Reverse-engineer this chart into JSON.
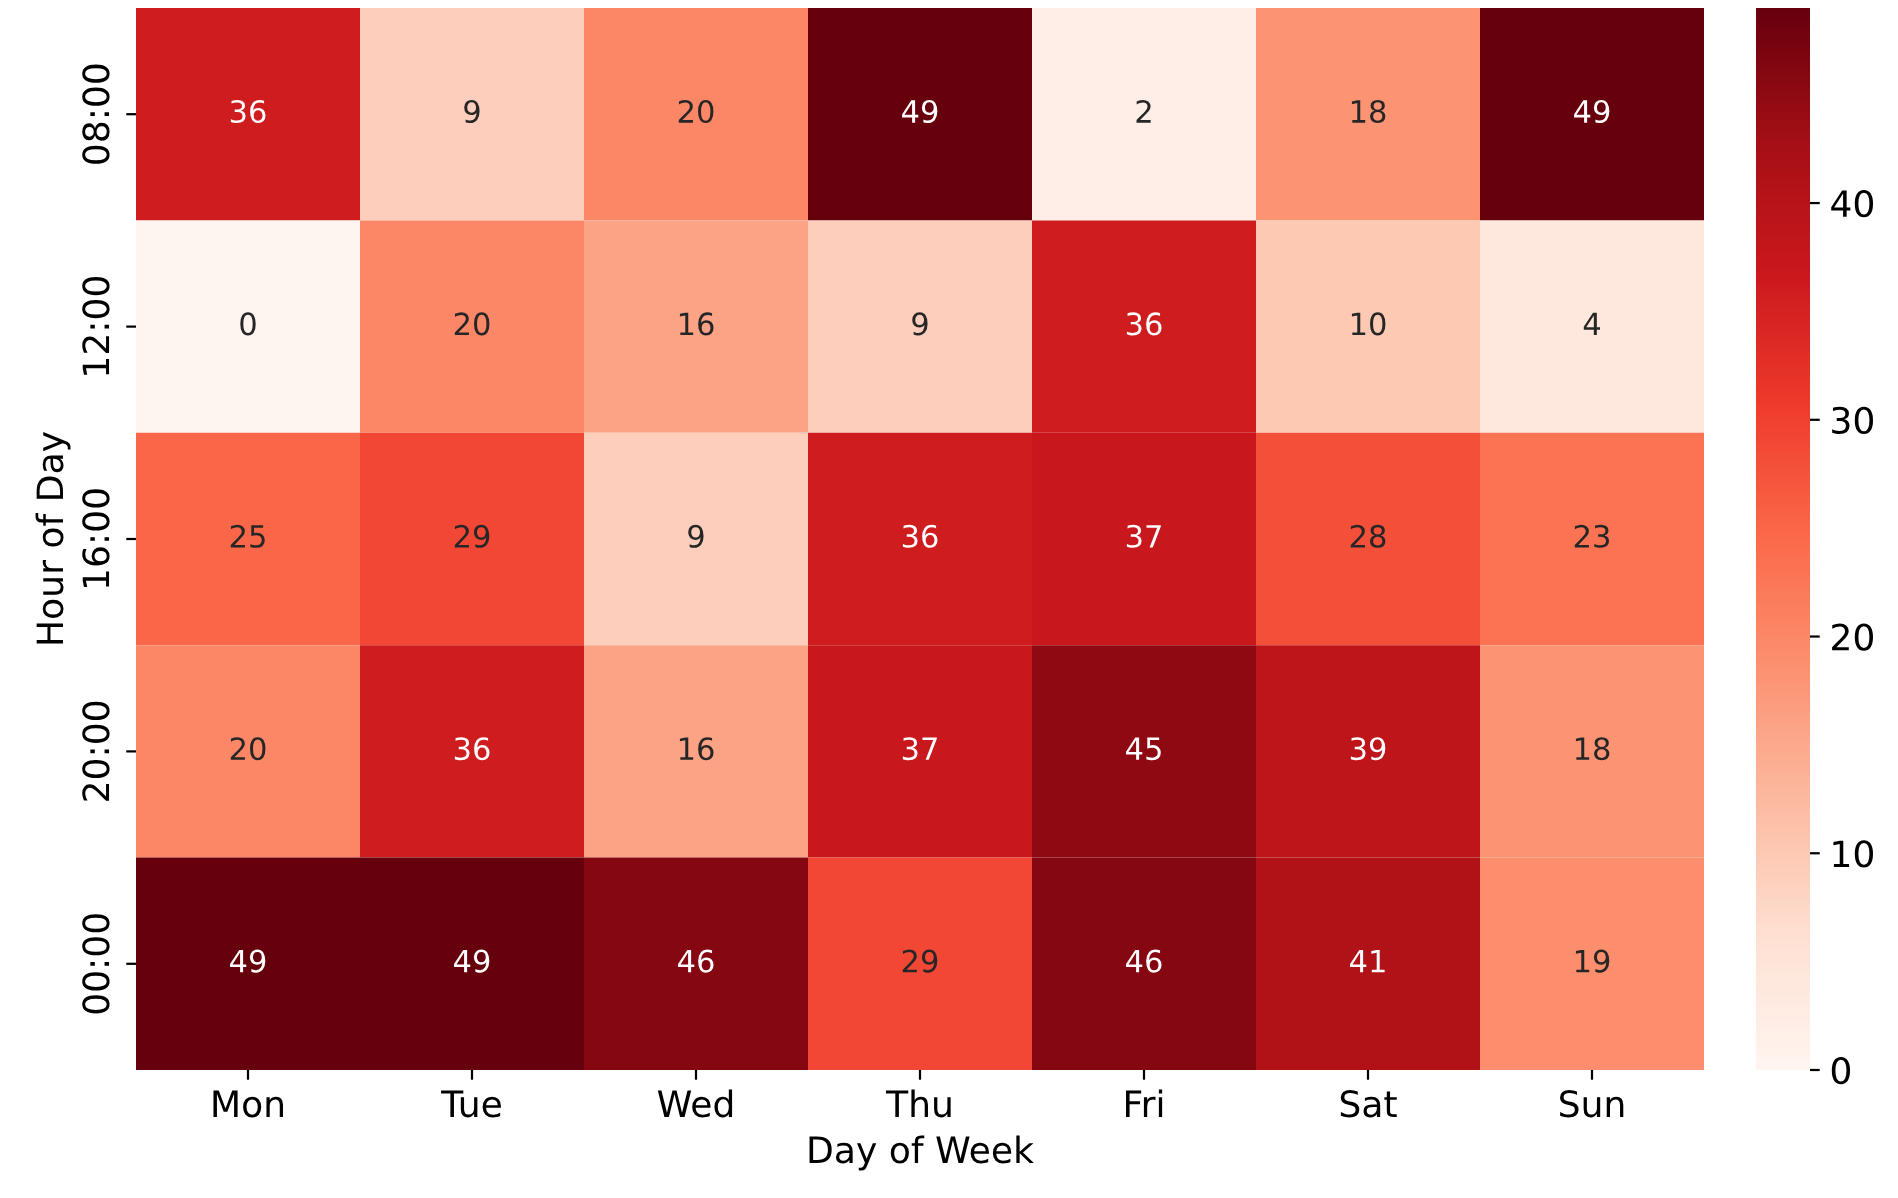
{
  "chart_data": {
    "type": "heatmap",
    "xlabel": "Day of Week",
    "ylabel": "Hour of Day",
    "categories": [
      "Mon",
      "Tue",
      "Wed",
      "Thu",
      "Fri",
      "Sat",
      "Sun"
    ],
    "y_categories": [
      "08:00",
      "12:00",
      "16:00",
      "20:00",
      "00:00"
    ],
    "cells": [
      [
        36,
        9,
        20,
        49,
        2,
        18,
        49
      ],
      [
        0,
        20,
        16,
        9,
        36,
        10,
        4
      ],
      [
        25,
        29,
        9,
        36,
        37,
        28,
        23
      ],
      [
        20,
        36,
        16,
        37,
        45,
        39,
        18
      ],
      [
        49,
        49,
        46,
        29,
        46,
        41,
        19
      ]
    ],
    "data_labels": true,
    "clim": [
      0,
      49
    ],
    "cticks": [
      0,
      10,
      20,
      30,
      40
    ]
  }
}
